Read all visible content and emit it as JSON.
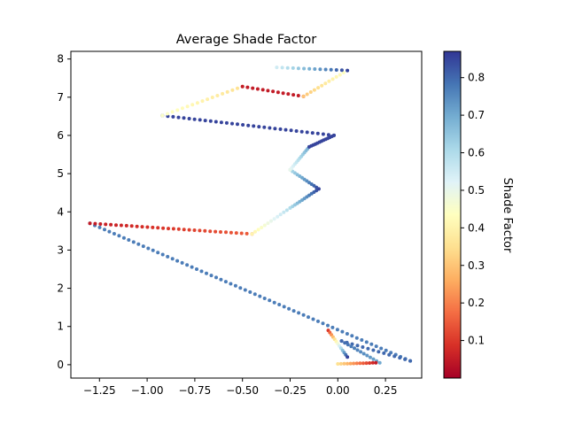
{
  "chart_data": {
    "type": "scatter",
    "title": "Average Shade Factor",
    "xlim": [
      -1.4,
      0.44
    ],
    "ylim": [
      -0.35,
      8.2
    ],
    "x_ticks": [
      -1.25,
      -1.0,
      -0.75,
      -0.5,
      -0.25,
      0.0,
      0.25
    ],
    "x_tick_labels": [
      "−1.25",
      "−1.00",
      "−0.75",
      "−0.50",
      "−0.25",
      "0.00",
      "0.25"
    ],
    "y_ticks": [
      0,
      1,
      2,
      3,
      4,
      5,
      6,
      7,
      8
    ],
    "y_tick_labels": [
      "0",
      "1",
      "2",
      "3",
      "4",
      "5",
      "6",
      "7",
      "8"
    ],
    "grid": false,
    "colormap": "RdYlBu",
    "colorbar": {
      "label": "Shade Factor",
      "range": [
        0.0,
        0.87
      ],
      "ticks": [
        0.1,
        0.2,
        0.3,
        0.4,
        0.5,
        0.6,
        0.7,
        0.8
      ],
      "tick_labels": [
        "0.1",
        "0.2",
        "0.3",
        "0.4",
        "0.5",
        "0.6",
        "0.7",
        "0.8"
      ]
    },
    "segments": [
      {
        "from": [
          0.38,
          0.1
        ],
        "to": [
          -1.3,
          3.7
        ],
        "shade": [
          0.77,
          0.77
        ]
      },
      {
        "from": [
          -1.3,
          3.7
        ],
        "to": [
          -0.45,
          3.42
        ],
        "shade": [
          0.05,
          0.15
        ]
      },
      {
        "from": [
          -0.45,
          3.42
        ],
        "to": [
          -0.25,
          4.1
        ],
        "shade": [
          0.4,
          0.6
        ]
      },
      {
        "from": [
          -0.25,
          4.1
        ],
        "to": [
          -0.1,
          4.6
        ],
        "shade": [
          0.6,
          0.85
        ]
      },
      {
        "from": [
          -0.1,
          4.6
        ],
        "to": [
          -0.25,
          5.1
        ],
        "shade": [
          0.85,
          0.6
        ]
      },
      {
        "from": [
          -0.25,
          5.1
        ],
        "to": [
          -0.15,
          5.7
        ],
        "shade": [
          0.5,
          0.7
        ]
      },
      {
        "from": [
          -0.15,
          5.7
        ],
        "to": [
          -0.02,
          6.0
        ],
        "shade": [
          0.85,
          0.85
        ]
      },
      {
        "from": [
          -0.02,
          6.0
        ],
        "to": [
          -0.92,
          6.52
        ],
        "shade": [
          0.85,
          0.85
        ]
      },
      {
        "from": [
          -0.92,
          6.52
        ],
        "to": [
          -0.5,
          7.28
        ],
        "shade": [
          0.45,
          0.35
        ]
      },
      {
        "from": [
          -0.5,
          7.28
        ],
        "to": [
          -0.18,
          7.02
        ],
        "shade": [
          0.05,
          0.05
        ]
      },
      {
        "from": [
          -0.18,
          7.02
        ],
        "to": [
          0.05,
          7.7
        ],
        "shade": [
          0.3,
          0.45
        ]
      },
      {
        "from": [
          0.05,
          7.7
        ],
        "to": [
          -0.32,
          7.78
        ],
        "shade": [
          0.85,
          0.55
        ]
      },
      {
        "from": [
          0.38,
          0.1
        ],
        "to": [
          0.02,
          0.62
        ],
        "shade": [
          0.8,
          0.8
        ]
      },
      {
        "from": [
          0.02,
          0.62
        ],
        "to": [
          0.22,
          0.05
        ],
        "shade": [
          0.8,
          0.7
        ]
      },
      {
        "from": [
          0.2,
          0.05
        ],
        "to": [
          0.0,
          0.02
        ],
        "shade": [
          0.05,
          0.35
        ]
      },
      {
        "from": [
          -0.05,
          0.9
        ],
        "to": [
          0.05,
          0.2
        ],
        "shade": [
          0.1,
          0.85
        ]
      }
    ]
  }
}
